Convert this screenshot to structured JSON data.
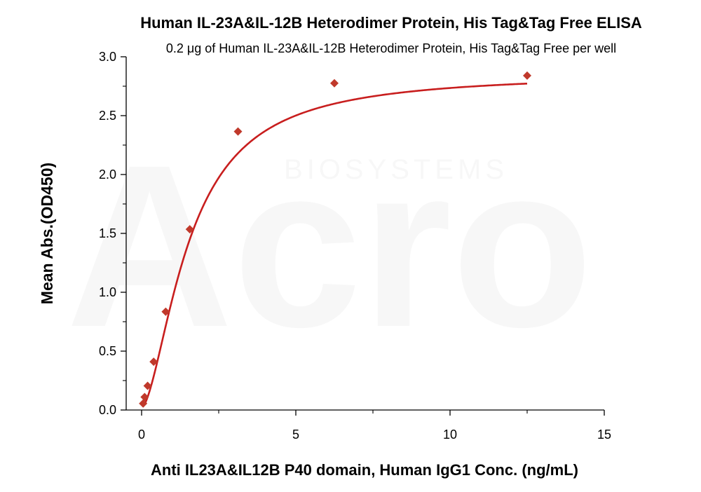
{
  "chart_data": {
    "type": "scatter",
    "title": "Human IL-23A&IL-12B Heterodimer Protein, His Tag&Tag Free ELISA",
    "subtitle": "0.2 μg of Human IL-23A&IL-12B Heterodimer Protein, His Tag&Tag Free per well",
    "xlabel": "Anti IL23A&IL12B P40 domain, Human IgG1 Conc. (ng/mL)",
    "ylabel": "Mean Abs.(OD450)",
    "xlim": [
      -0.5,
      15
    ],
    "ylim": [
      0,
      3.0
    ],
    "x_ticks": [
      0,
      5,
      10,
      15
    ],
    "x_tick_labels": [
      "0",
      "5",
      "10",
      "15"
    ],
    "y_ticks": [
      0,
      0.5,
      1.0,
      1.5,
      2.0,
      2.5,
      3.0
    ],
    "y_tick_labels": [
      "0.0",
      "0.5",
      "1.0",
      "1.5",
      "2.0",
      "2.5",
      "3.0"
    ],
    "grid": false,
    "series": [
      {
        "marker": "diamond",
        "color": "#c0392b",
        "x": [
          0.049,
          0.098,
          0.195,
          0.391,
          0.781,
          1.5625,
          3.125,
          6.25,
          12.5
        ],
        "y": [
          0.055,
          0.11,
          0.205,
          0.41,
          0.835,
          1.535,
          2.365,
          2.775,
          2.84
        ]
      }
    ],
    "fit_curve": {
      "type": "4PL",
      "color": "#c81e1e",
      "bottom": 0.02,
      "top": 2.86,
      "ec50": 1.55,
      "hill": 1.65
    },
    "watermark": "Acro BIOSYSTEMS"
  }
}
